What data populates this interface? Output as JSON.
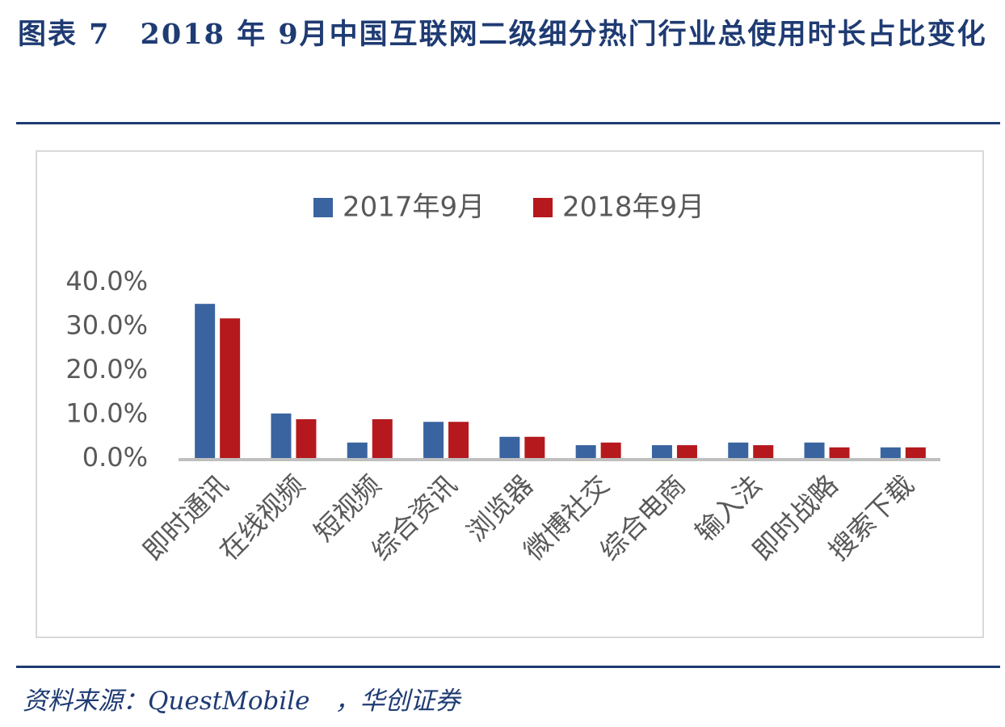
{
  "title": "图表 7　2018 年 9月中国互联网二级细分热门行业总使用时长占比变化",
  "source": "资料来源：QuestMobile　，华创证券",
  "chart_data": {
    "type": "bar",
    "categories": [
      "即时通讯",
      "在线视频",
      "短视频",
      "综合资讯",
      "浏览器",
      "微博社交",
      "综合电商",
      "输入法",
      "即时战略",
      "搜索下载"
    ],
    "series": [
      {
        "name": "2017年9月",
        "color": "#3a64a0",
        "values": [
          35.2,
          10.3,
          3.7,
          8.4,
          5.0,
          3.1,
          3.1,
          3.7,
          3.7,
          2.6
        ]
      },
      {
        "name": "2018年9月",
        "color": "#b5191e",
        "values": [
          31.9,
          9.0,
          9.0,
          8.4,
          5.0,
          3.7,
          3.1,
          3.1,
          2.6,
          2.6
        ]
      }
    ],
    "ylim": [
      0,
      40
    ],
    "yticks": [
      {
        "value": 0,
        "label": "0.0%"
      },
      {
        "value": 10,
        "label": "10.0%"
      },
      {
        "value": 20,
        "label": "20.0%"
      },
      {
        "value": 30,
        "label": "30.0%"
      },
      {
        "value": 40,
        "label": "40.0%"
      }
    ],
    "grid": false,
    "legend": "top"
  }
}
